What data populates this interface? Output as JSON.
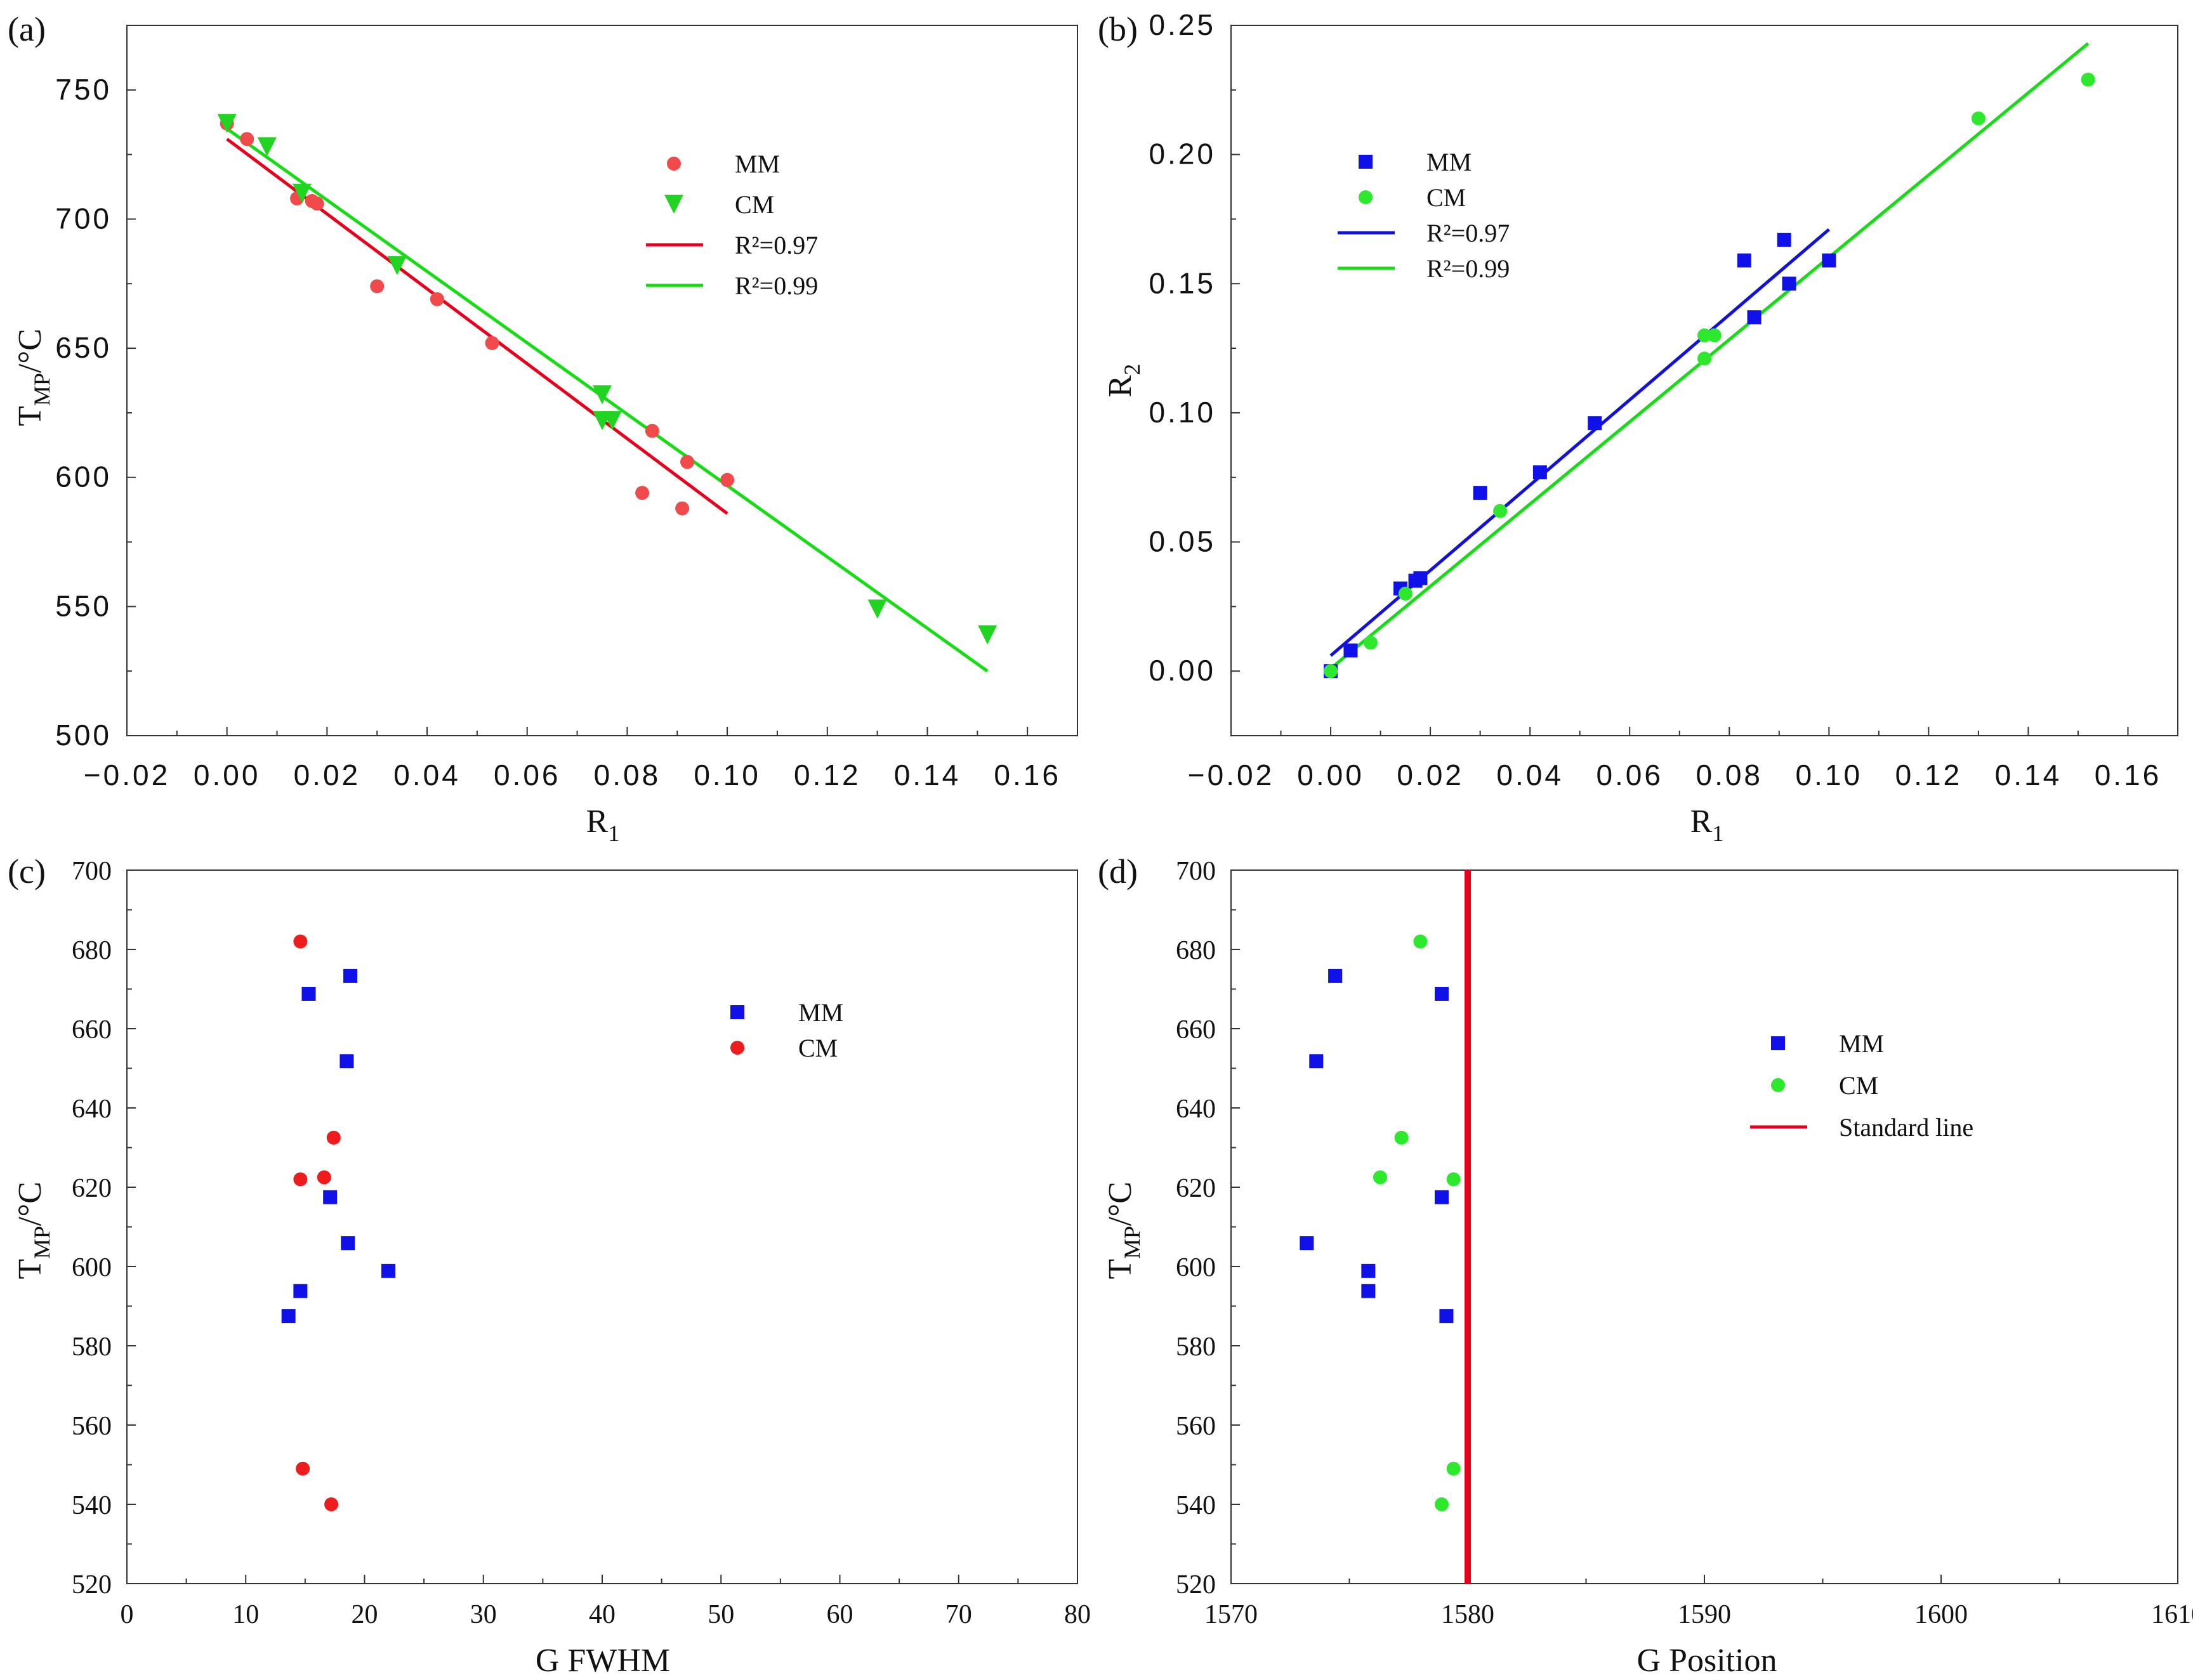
{
  "chart_data": [
    {
      "panel": "(a)",
      "type": "scatter",
      "xlabel": "R",
      "xlabel_sub": "1",
      "ylabel": "T",
      "ylabel_sub": "MP",
      "ylabel_suffix": "/°C",
      "xlim": [
        -0.02,
        0.17
      ],
      "ylim": [
        500,
        775
      ],
      "xticks": [
        -0.02,
        0.0,
        0.02,
        0.04,
        0.06,
        0.08,
        0.1,
        0.12,
        0.14,
        0.16
      ],
      "xtick_labels": [
        "−0.02",
        "0.00",
        "0.02",
        "0.04",
        "0.06",
        "0.08",
        "0.10",
        "0.12",
        "0.14",
        "0.16"
      ],
      "yticks": [
        500,
        550,
        600,
        650,
        700,
        750
      ],
      "ytick_labels": [
        "500",
        "550",
        "600",
        "650",
        "700",
        "750"
      ],
      "legend_position": "upper-right",
      "series": [
        {
          "name": "MM",
          "marker": "circle",
          "color": "#f04a4a",
          "points": [
            [
              0.0,
              737
            ],
            [
              0.004,
              731
            ],
            [
              0.014,
              708
            ],
            [
              0.017,
              707
            ],
            [
              0.018,
              706
            ],
            [
              0.03,
              674
            ],
            [
              0.042,
              669
            ],
            [
              0.053,
              652
            ],
            [
              0.083,
              594
            ],
            [
              0.085,
              618
            ],
            [
              0.091,
              588
            ],
            [
              0.092,
              606
            ],
            [
              0.1,
              599
            ]
          ]
        },
        {
          "name": "CM",
          "marker": "triangle-down",
          "color": "#22d422",
          "points": [
            [
              0.0,
              737
            ],
            [
              0.008,
              728
            ],
            [
              0.015,
              710
            ],
            [
              0.034,
              682
            ],
            [
              0.075,
              632
            ],
            [
              0.075,
              622
            ],
            [
              0.077,
              622
            ],
            [
              0.13,
              549
            ],
            [
              0.152,
              539
            ]
          ]
        },
        {
          "name": "R²=0.97",
          "type": "line",
          "color": "#e8001c",
          "points": [
            [
              0.0,
              731
            ],
            [
              0.1,
              586
            ]
          ]
        },
        {
          "name": "R²=0.99",
          "type": "line",
          "color": "#14dd14",
          "points": [
            [
              0.0,
              735
            ],
            [
              0.152,
              525
            ]
          ]
        }
      ]
    },
    {
      "panel": "(b)",
      "type": "scatter",
      "xlabel": "R",
      "xlabel_sub": "1",
      "ylabel": "R",
      "ylabel_sub": "2",
      "ylabel_suffix": "",
      "xlim": [
        -0.02,
        0.17
      ],
      "ylim": [
        -0.025,
        0.25
      ],
      "xticks": [
        -0.02,
        0.0,
        0.02,
        0.04,
        0.06,
        0.08,
        0.1,
        0.12,
        0.14,
        0.16
      ],
      "xtick_labels": [
        "−0.02",
        "0.00",
        "0.02",
        "0.04",
        "0.06",
        "0.08",
        "0.10",
        "0.12",
        "0.14",
        "0.16"
      ],
      "yticks": [
        0.0,
        0.05,
        0.1,
        0.15,
        0.2,
        0.25
      ],
      "ytick_labels": [
        "0.00",
        "0.05",
        "0.10",
        "0.15",
        "0.20",
        "0.25"
      ],
      "legend_position": "upper-left",
      "series": [
        {
          "name": "MM",
          "marker": "square",
          "color": "#1010e8",
          "points": [
            [
              0.0,
              0.0
            ],
            [
              0.004,
              0.008
            ],
            [
              0.014,
              0.032
            ],
            [
              0.017,
              0.035
            ],
            [
              0.018,
              0.036
            ],
            [
              0.03,
              0.069
            ],
            [
              0.042,
              0.077
            ],
            [
              0.053,
              0.096
            ],
            [
              0.083,
              0.159
            ],
            [
              0.085,
              0.137
            ],
            [
              0.091,
              0.167
            ],
            [
              0.092,
              0.15
            ],
            [
              0.1,
              0.159
            ]
          ]
        },
        {
          "name": "CM",
          "marker": "circle",
          "color": "#2ee82e",
          "points": [
            [
              0.0,
              0.0
            ],
            [
              0.008,
              0.011
            ],
            [
              0.015,
              0.03
            ],
            [
              0.034,
              0.062
            ],
            [
              0.075,
              0.121
            ],
            [
              0.075,
              0.13
            ],
            [
              0.077,
              0.13
            ],
            [
              0.13,
              0.214
            ],
            [
              0.152,
              0.229
            ]
          ]
        },
        {
          "name": "R²=0.97",
          "type": "line",
          "color": "#1010e0",
          "points": [
            [
              0.0,
              0.006
            ],
            [
              0.1,
              0.171
            ]
          ]
        },
        {
          "name": "R²=0.99",
          "type": "line",
          "color": "#14dd14",
          "points": [
            [
              0.0,
              0.001
            ],
            [
              0.152,
              0.243
            ]
          ]
        }
      ]
    },
    {
      "panel": "(c)",
      "type": "scatter",
      "xlabel": "G FWHM",
      "xlabel_sub": "",
      "ylabel": "T",
      "ylabel_sub": "MP",
      "ylabel_suffix": "/°C",
      "xlim": [
        0,
        80
      ],
      "ylim": [
        520,
        700
      ],
      "xticks": [
        0,
        10,
        20,
        30,
        40,
        50,
        60,
        70,
        80
      ],
      "xtick_labels": [
        "0",
        "10",
        "20",
        "30",
        "40",
        "50",
        "60",
        "70",
        "80"
      ],
      "yticks": [
        520,
        540,
        560,
        580,
        600,
        620,
        640,
        660,
        680,
        700
      ],
      "ytick_labels": [
        "520",
        "540",
        "560",
        "580",
        "600",
        "620",
        "640",
        "660",
        "680",
        "700"
      ],
      "legend_position": "upper-right",
      "series": [
        {
          "name": "MM",
          "marker": "square",
          "color": "#1010e8",
          "points": [
            [
              13.6,
              587.5
            ],
            [
              14.6,
              593.8
            ],
            [
              15.3,
              668.8
            ],
            [
              17.1,
              617.5
            ],
            [
              18.5,
              651.8
            ],
            [
              18.6,
              605.9
            ],
            [
              18.8,
              673.3
            ],
            [
              22.0,
              598.9
            ]
          ]
        },
        {
          "name": "CM",
          "marker": "circle",
          "color": "#ee1c1c",
          "points": [
            [
              14.6,
              682.0
            ],
            [
              14.6,
              622.0
            ],
            [
              14.8,
              549.0
            ],
            [
              16.6,
              622.5
            ],
            [
              17.2,
              540.0
            ],
            [
              17.4,
              632.5
            ]
          ]
        }
      ]
    },
    {
      "panel": "(d)",
      "type": "scatter",
      "xlabel": "G Position",
      "xlabel_sub": "",
      "ylabel": "T",
      "ylabel_sub": "MP",
      "ylabel_suffix": "/°C",
      "xlim": [
        1570,
        1610
      ],
      "ylim": [
        520,
        700
      ],
      "xticks": [
        1570,
        1580,
        1590,
        1600,
        1610
      ],
      "xtick_labels": [
        "1570",
        "1580",
        "1590",
        "1600",
        "1610"
      ],
      "yticks": [
        520,
        540,
        560,
        580,
        600,
        620,
        640,
        660,
        680,
        700
      ],
      "ytick_labels": [
        "520",
        "540",
        "560",
        "580",
        "600",
        "620",
        "640",
        "660",
        "680",
        "700"
      ],
      "legend_position": "center-right",
      "series": [
        {
          "name": "MM",
          "marker": "square",
          "color": "#1010e8",
          "points": [
            [
              1573.2,
              605.9
            ],
            [
              1573.6,
              651.8
            ],
            [
              1574.4,
              673.3
            ],
            [
              1575.8,
              593.8
            ],
            [
              1575.8,
              598.9
            ],
            [
              1578.9,
              617.5
            ],
            [
              1578.9,
              668.8
            ],
            [
              1579.1,
              587.5
            ]
          ]
        },
        {
          "name": "CM",
          "marker": "circle",
          "color": "#2ee82e",
          "points": [
            [
              1576.3,
              622.5
            ],
            [
              1577.2,
              632.5
            ],
            [
              1578.0,
              682.0
            ],
            [
              1578.9,
              540.0
            ],
            [
              1579.4,
              622.0
            ],
            [
              1579.4,
              549.0
            ]
          ]
        },
        {
          "name": "Standard line",
          "type": "vline",
          "color": "#e8001c",
          "x": 1580
        }
      ]
    }
  ]
}
